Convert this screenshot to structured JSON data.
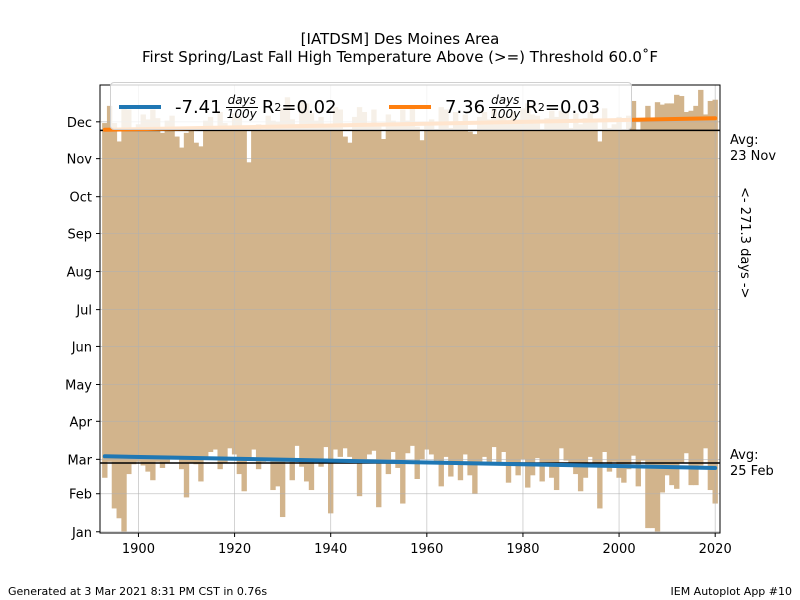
{
  "chart_data": {
    "type": "bar",
    "title": "[IATDSM] Des Moines Area",
    "subtitle": "First Spring/Last Fall High Temperature Above (>=) Threshold 60.0˚F",
    "x_ticks": [
      "1900",
      "1920",
      "1940",
      "1960",
      "1980",
      "2000",
      "2020"
    ],
    "y_ticks": [
      "Jan",
      "Feb",
      "Mar",
      "Apr",
      "May",
      "Jun",
      "Jul",
      "Aug",
      "Sep",
      "Oct",
      "Nov",
      "Dec"
    ],
    "xlim": [
      1892,
      2021
    ],
    "ylim_day_of_year": [
      0,
      365
    ],
    "grid": true,
    "legend_position": "top",
    "bar_color": "#d2b48c",
    "years": [
      1893,
      1894,
      1895,
      1896,
      1897,
      1898,
      1899,
      1900,
      1901,
      1902,
      1903,
      1904,
      1905,
      1906,
      1907,
      1908,
      1909,
      1910,
      1911,
      1912,
      1913,
      1914,
      1915,
      1916,
      1917,
      1918,
      1919,
      1920,
      1921,
      1922,
      1923,
      1924,
      1925,
      1926,
      1927,
      1928,
      1929,
      1930,
      1931,
      1932,
      1933,
      1934,
      1935,
      1936,
      1937,
      1938,
      1939,
      1940,
      1941,
      1942,
      1943,
      1944,
      1945,
      1946,
      1947,
      1948,
      1949,
      1950,
      1951,
      1952,
      1953,
      1954,
      1955,
      1956,
      1957,
      1958,
      1959,
      1960,
      1961,
      1962,
      1963,
      1964,
      1965,
      1966,
      1967,
      1968,
      1969,
      1970,
      1971,
      1972,
      1973,
      1974,
      1975,
      1976,
      1977,
      1978,
      1979,
      1980,
      1981,
      1982,
      1983,
      1984,
      1985,
      1986,
      1987,
      1988,
      1989,
      1990,
      1991,
      1992,
      1993,
      1994,
      1995,
      1996,
      1997,
      1998,
      1999,
      2000,
      2001,
      2002,
      2003,
      2004,
      2005,
      2006,
      2007,
      2008,
      2009,
      2010,
      2011,
      2012,
      2013,
      2014,
      2015,
      2016,
      2017,
      2018,
      2019,
      2020
    ],
    "first_spring_doy": [
      45,
      58,
      20,
      12,
      1,
      48,
      56,
      58,
      55,
      50,
      43,
      58,
      53,
      57,
      60,
      62,
      52,
      29,
      57,
      56,
      42,
      62,
      66,
      68,
      52,
      57,
      69,
      64,
      48,
      34,
      60,
      68,
      52,
      58,
      59,
      35,
      38,
      13,
      58,
      43,
      71,
      54,
      42,
      35,
      59,
      54,
      70,
      16,
      68,
      62,
      69,
      62,
      58,
      30,
      57,
      64,
      67,
      21,
      59,
      48,
      66,
      53,
      24,
      65,
      71,
      44,
      60,
      68,
      64,
      59,
      38,
      62,
      46,
      58,
      43,
      64,
      47,
      32,
      58,
      62,
      56,
      70,
      56,
      66,
      41,
      55,
      47,
      60,
      37,
      47,
      61,
      42,
      55,
      45,
      35,
      69,
      59,
      57,
      48,
      34,
      45,
      62,
      55,
      20,
      66,
      50,
      58,
      45,
      41,
      52,
      63,
      38,
      59,
      4,
      4,
      1,
      33,
      47,
      39,
      36,
      57,
      65,
      39,
      39,
      55,
      69,
      35,
      24
    ],
    "last_fall_doy": [
      334,
      348,
      334,
      319,
      347,
      345,
      330,
      333,
      341,
      337,
      345,
      338,
      326,
      336,
      340,
      323,
      314,
      326,
      330,
      318,
      315,
      336,
      339,
      330,
      343,
      334,
      331,
      342,
      339,
      330,
      302,
      331,
      333,
      328,
      340,
      336,
      335,
      346,
      355,
      337,
      333,
      352,
      350,
      342,
      336,
      339,
      333,
      333,
      347,
      345,
      323,
      318,
      339,
      347,
      343,
      332,
      345,
      334,
      321,
      341,
      336,
      333,
      345,
      336,
      346,
      331,
      320,
      332,
      337,
      328,
      347,
      345,
      330,
      343,
      333,
      341,
      327,
      325,
      339,
      343,
      337,
      346,
      339,
      339,
      336,
      343,
      337,
      346,
      350,
      341,
      340,
      329,
      338,
      344,
      339,
      344,
      343,
      330,
      342,
      333,
      338,
      343,
      337,
      319,
      346,
      330,
      333,
      339,
      328,
      340,
      352,
      328,
      338,
      348,
      337,
      351,
      349,
      350,
      350,
      357,
      356,
      343,
      344,
      348,
      361,
      341,
      352,
      353
    ],
    "series": [
      {
        "name": "-7.41 days/100y R²=0.02",
        "color": "#1f77b4",
        "trend_doy": [
          62.5,
          53.0
        ],
        "r2": "0.02",
        "slope": "-7.41"
      },
      {
        "name": "7.36 days/100y R²=0.03",
        "color": "#ff7f0e",
        "trend_doy": [
          328.5,
          337.9
        ],
        "r2": "0.03",
        "slope": "7.36"
      }
    ],
    "avg_spring_label": [
      "Avg:",
      "25 Feb"
    ],
    "avg_fall_label": [
      "Avg:",
      "23 Nov"
    ],
    "avg_spring_doy": 57,
    "avg_fall_doy": 328,
    "span_label": "<- 271.3 days ->",
    "legend": {
      "units": "days",
      "per": "100y",
      "r2_prefix": "R",
      "blue": {
        "slope": "-7.41",
        "r2": "=0.02"
      },
      "orange": {
        "slope": "7.36",
        "r2": "=0.03"
      }
    }
  },
  "footer": {
    "left": "Generated at 3 Mar 2021 8:31 PM CST in 0.76s",
    "right": "IEM Autoplot App #10"
  }
}
